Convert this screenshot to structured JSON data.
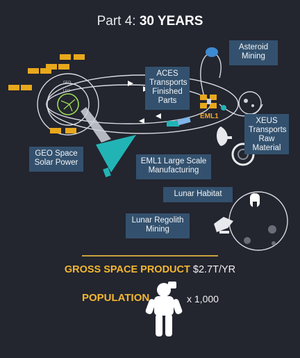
{
  "title": {
    "prefix": "Part 4:",
    "emph": "30 YEARS"
  },
  "labels": {
    "asteroid": "Asteroid\nMining",
    "aces": "ACES\nTransports\nFinished\nParts",
    "xeus": "XEUS\nTransports\nRaw\nMaterial",
    "geo_solar": "GEO Space\nSolar Power",
    "eml1_mfg": "EML1 Large Scale\nManufacturing",
    "habitat": "Lunar Habitat",
    "regolith": "Lunar Regolith\nMining",
    "eml1": "EML1",
    "geo_orbit": "GEO",
    "leo_orbit": "LEO"
  },
  "gsp": {
    "label": "GROSS SPACE PRODUCT",
    "value": "$2.7T/YR"
  },
  "population": {
    "label": "POPULATION",
    "value": "x 1,000"
  },
  "colors": {
    "accent": "#f3b731",
    "label_bg": "#33516e",
    "teal": "#22b4b5",
    "panel": "#e8a81c"
  }
}
